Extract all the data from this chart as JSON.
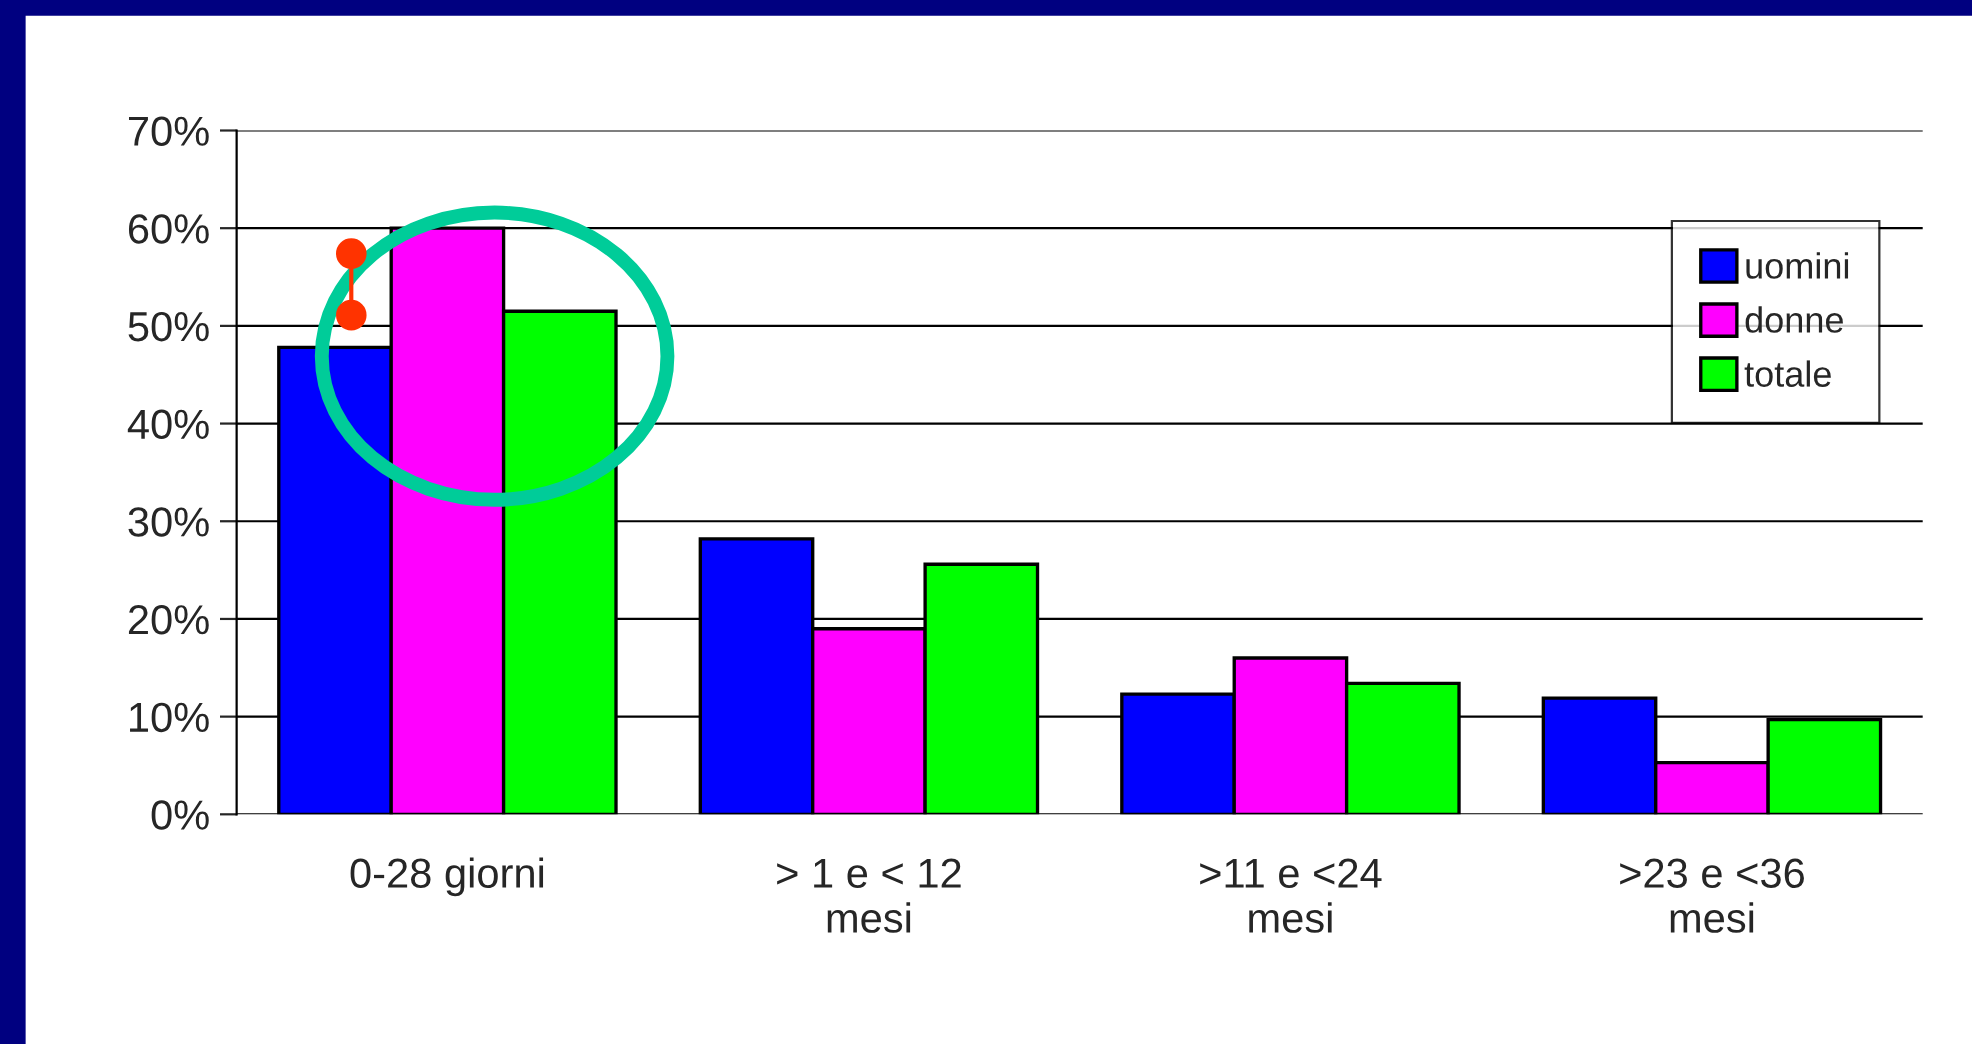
{
  "chart_data": {
    "type": "bar",
    "categories": [
      "0-28 giorni",
      "> 1 e < 12\nmesi",
      ">11 e <24\nmesi",
      ">23 e <36\nmesi"
    ],
    "series": [
      {
        "name": "uomini",
        "color": "#0000ff",
        "values": [
          47.8,
          28.2,
          12.3,
          11.9
        ]
      },
      {
        "name": "donne",
        "color": "#ff00ff",
        "values": [
          60,
          19.0,
          16.0,
          5.3
        ]
      },
      {
        "name": "totale",
        "color": "#00ff00",
        "values": [
          51.5,
          25.6,
          13.4,
          9.7
        ]
      }
    ],
    "ylim": [
      0,
      70
    ],
    "yticks": [
      {
        "value": 0,
        "label": "0%"
      },
      {
        "value": 10,
        "label": "10%"
      },
      {
        "value": 20,
        "label": "20%"
      },
      {
        "value": 30,
        "label": "30%"
      },
      {
        "value": 40,
        "label": "40%"
      },
      {
        "value": 50,
        "label": "50%"
      },
      {
        "value": 60,
        "label": "60%"
      },
      {
        "value": 70,
        "label": "70%"
      }
    ],
    "grid": "y",
    "legend": "right"
  }
}
